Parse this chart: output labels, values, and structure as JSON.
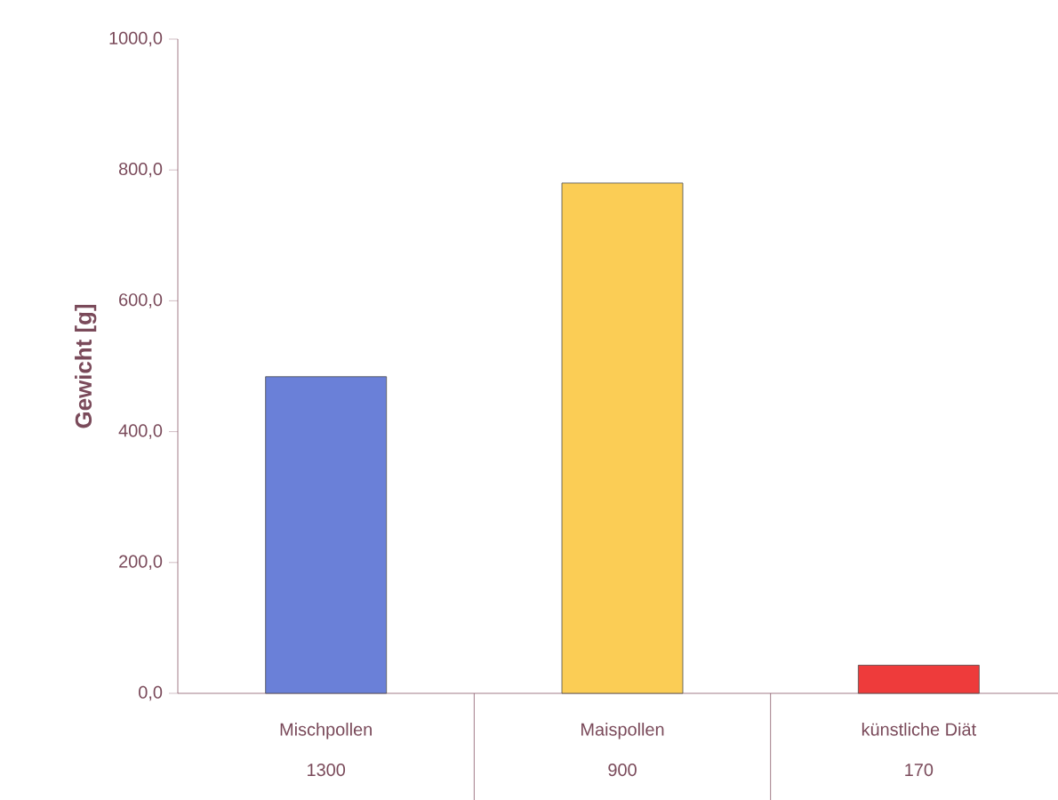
{
  "chart_data": {
    "type": "bar",
    "ylabel": "Gewicht [g]",
    "categories": [
      "Mischpollen",
      "Maispollen",
      "künstliche Diät"
    ],
    "values": [
      484,
      780,
      43
    ],
    "colors": [
      "#6a80d8",
      "#fbcd55",
      "#ee3b3b"
    ],
    "ylim": [
      0,
      1000
    ],
    "yticks": [
      {
        "value": 0,
        "label": "0,0"
      },
      {
        "value": 200,
        "label": "200,0"
      },
      {
        "value": 400,
        "label": "400,0"
      },
      {
        "value": 600,
        "label": "600,0"
      },
      {
        "value": 800,
        "label": "800,0"
      },
      {
        "value": 1000,
        "label": "1000,0"
      }
    ],
    "annotations": [
      "1300",
      "900",
      "170"
    ]
  }
}
